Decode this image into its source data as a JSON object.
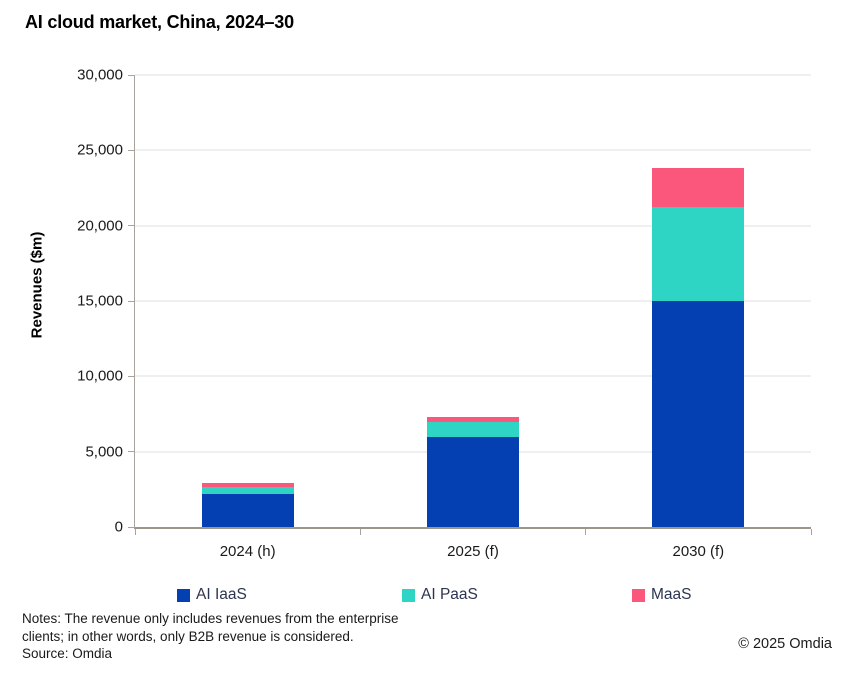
{
  "title": "AI cloud market, China, 2024–30",
  "chart_data": {
    "type": "bar",
    "stacked": true,
    "categories": [
      "2024 (h)",
      "2025 (f)",
      "2030 (f)"
    ],
    "series": [
      {
        "name": "AI IaaS",
        "color": "#0540B2",
        "values": [
          2200,
          6000,
          15000
        ]
      },
      {
        "name": "AI PaaS",
        "color": "#2FD5C4",
        "values": [
          450,
          1000,
          6250
        ]
      },
      {
        "name": "MaaS",
        "color": "#FB567B",
        "values": [
          300,
          300,
          2600
        ]
      }
    ],
    "totals": [
      2950,
      7300,
      23850
    ],
    "xlabel": "",
    "ylabel": "Revenues ($m)",
    "ylim": [
      0,
      30000
    ],
    "ytick_step": 5000,
    "yticks": [
      "0",
      "5,000",
      "10,000",
      "15,000",
      "20,000",
      "25,000",
      "30,000"
    ],
    "grid": true,
    "legend_position": "bottom"
  },
  "notes": [
    "Notes: The revenue only includes revenues from the enterprise",
    "clients; in other words, only B2B revenue is considered."
  ],
  "source": "Source: Omdia",
  "copyright": "© 2025 Omdia",
  "colors": {
    "ai_iaas": "#0540B2",
    "ai_paas": "#2FD5C4",
    "maas": "#FB567B",
    "gridline": "#efefef",
    "axis": "#9d968b",
    "legend_text": "#2b3550"
  }
}
